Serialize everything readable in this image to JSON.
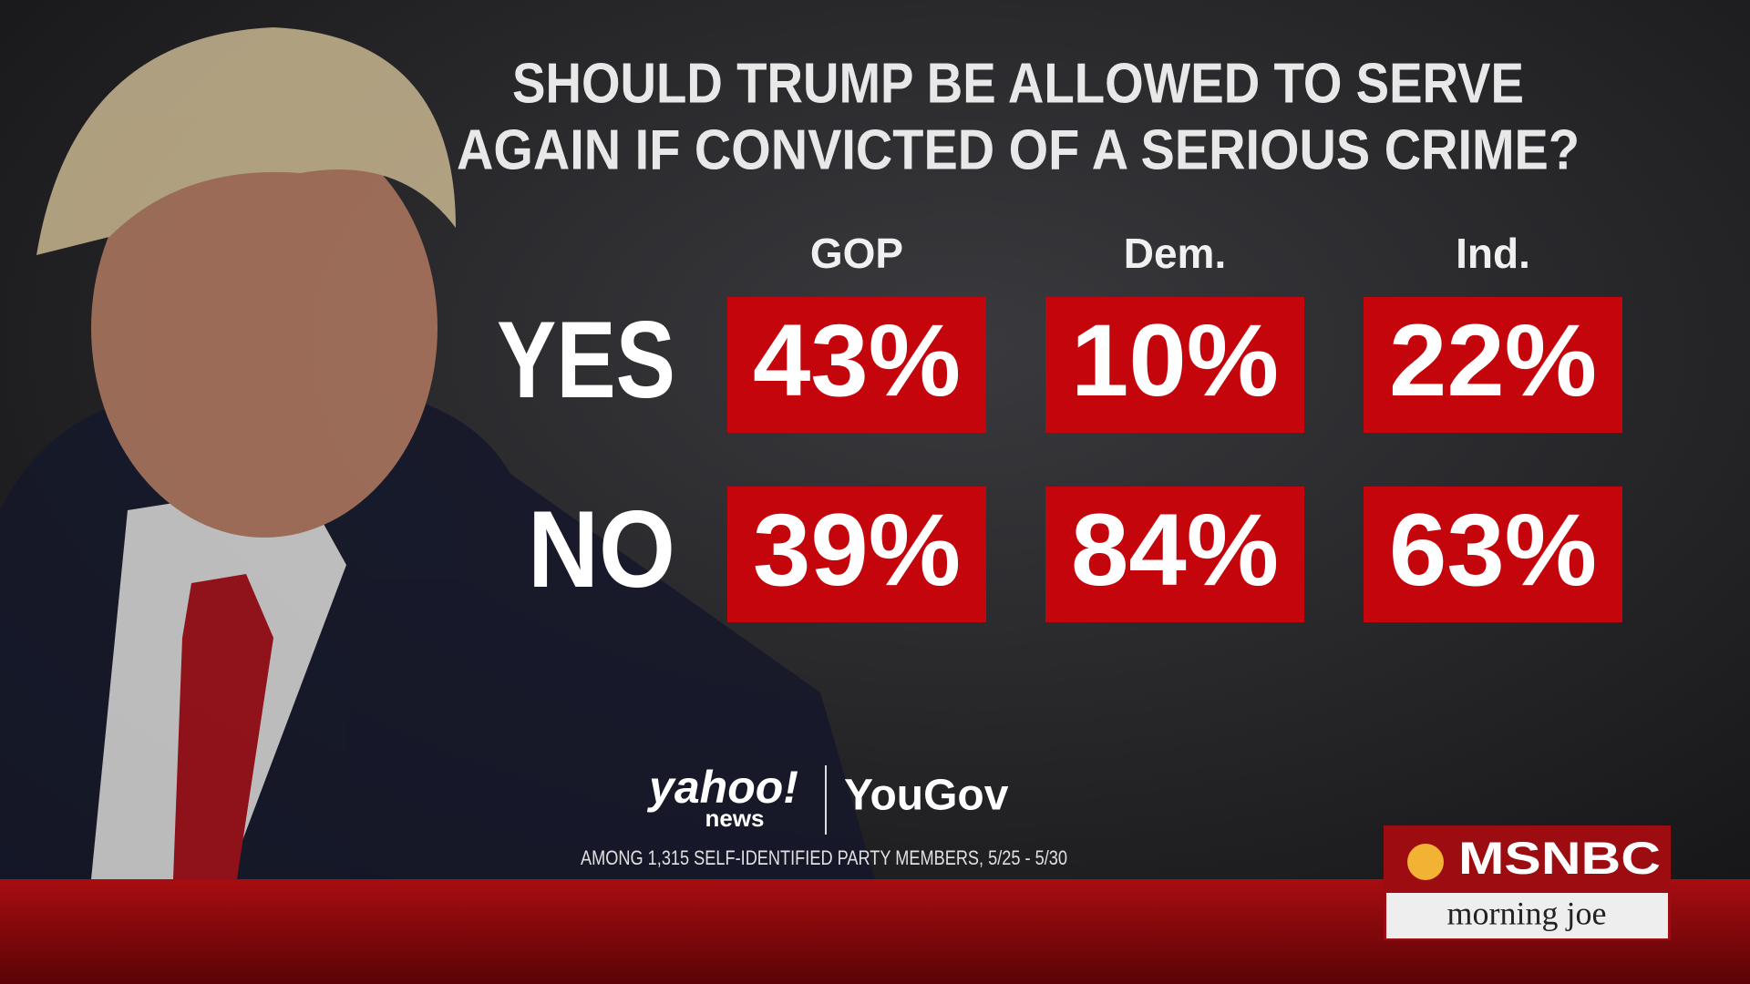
{
  "title": [
    "SHOULD TRUMP BE ALLOWED TO SERVE",
    "AGAIN IF CONVICTED OF A SERIOUS CRIME?"
  ],
  "table": {
    "columns": [
      "GOP",
      "Dem.",
      "Ind."
    ],
    "rows": [
      {
        "label": "YES",
        "cells": [
          "43%",
          "10%",
          "22%"
        ]
      },
      {
        "label": "NO",
        "cells": [
          "39%",
          "84%",
          "63%"
        ]
      }
    ]
  },
  "source": {
    "brand": "yahoo!",
    "brand_sub": "news",
    "partner": "YouGov",
    "note": "AMONG 1,315 SELF-IDENTIFIED PARTY MEMBERS, 5/25 - 5/30"
  },
  "network": {
    "name": "MSNBC",
    "show": "morning joe"
  }
}
